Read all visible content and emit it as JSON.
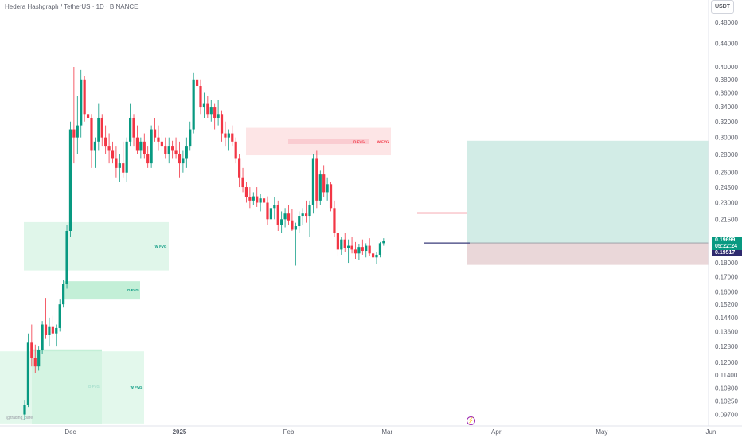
{
  "header": {
    "symbol_title": "Hedera Hashgraph / TetherUS · 1D · BINANCE",
    "currency_button": "USDT"
  },
  "watermark": "@trading_bare",
  "price_tags": {
    "last_price": "0.19699",
    "countdown": "05:22:24",
    "second_price": "0.19517"
  },
  "colors": {
    "up": "#089981",
    "down": "#f23645",
    "fvg_up_fill": "#daf5e6",
    "fvg_up_fill_strong": "#b8ecd0",
    "fvg_down_fill": "#fde0e2",
    "target_zone": "#d2ece6",
    "stop_zone": "#ead7d9",
    "level_line": "#3a3b7a"
  },
  "chart_data": {
    "type": "candlestick",
    "title": "Hedera Hashgraph / TetherUS · 1D · BINANCE",
    "y_axis": {
      "scale": "log",
      "ylim": [
        0.0935,
        0.515
      ],
      "tick_labels": [
        "0.48000",
        "0.44000",
        "0.40000",
        "0.38000",
        "0.36000",
        "0.34000",
        "0.32000",
        "0.30000",
        "0.28000",
        "0.26000",
        "0.24500",
        "0.23000",
        "0.21500",
        "0.18000",
        "0.17000",
        "0.16000",
        "0.15200",
        "0.14400",
        "0.13600",
        "0.12800",
        "0.12000",
        "0.11400",
        "0.10800",
        "0.10250",
        "0.09700"
      ]
    },
    "x_axis": {
      "tick_labels": [
        {
          "label": "Dec",
          "day": 13
        },
        {
          "label": "2025",
          "day": 44
        },
        {
          "label": "Feb",
          "day": 75
        },
        {
          "label": "Mar",
          "day": 103
        },
        {
          "label": "Apr",
          "day": 134
        },
        {
          "label": "May",
          "day": 164
        },
        {
          "label": "Jun",
          "day": 195
        }
      ]
    },
    "candles": [
      [
        0.097,
        0.103,
        0.095,
        0.101
      ],
      [
        0.101,
        0.135,
        0.1,
        0.13
      ],
      [
        0.13,
        0.14,
        0.118,
        0.122
      ],
      [
        0.122,
        0.129,
        0.115,
        0.118
      ],
      [
        0.118,
        0.128,
        0.116,
        0.126
      ],
      [
        0.126,
        0.142,
        0.124,
        0.14
      ],
      [
        0.14,
        0.156,
        0.132,
        0.134
      ],
      [
        0.134,
        0.144,
        0.128,
        0.139
      ],
      [
        0.139,
        0.145,
        0.132,
        0.135
      ],
      [
        0.135,
        0.14,
        0.128,
        0.138
      ],
      [
        0.138,
        0.155,
        0.136,
        0.152
      ],
      [
        0.152,
        0.168,
        0.15,
        0.165
      ],
      [
        0.165,
        0.21,
        0.162,
        0.205
      ],
      [
        0.205,
        0.32,
        0.2,
        0.31
      ],
      [
        0.31,
        0.4,
        0.27,
        0.3
      ],
      [
        0.3,
        0.355,
        0.28,
        0.315
      ],
      [
        0.315,
        0.395,
        0.3,
        0.38
      ],
      [
        0.38,
        0.385,
        0.32,
        0.33
      ],
      [
        0.33,
        0.345,
        0.24,
        0.325
      ],
      [
        0.325,
        0.33,
        0.265,
        0.285
      ],
      [
        0.285,
        0.3,
        0.265,
        0.295
      ],
      [
        0.295,
        0.345,
        0.285,
        0.325
      ],
      [
        0.325,
        0.33,
        0.29,
        0.3
      ],
      [
        0.3,
        0.315,
        0.28,
        0.29
      ],
      [
        0.29,
        0.305,
        0.27,
        0.285
      ],
      [
        0.285,
        0.295,
        0.27,
        0.275
      ],
      [
        0.275,
        0.29,
        0.255,
        0.265
      ],
      [
        0.265,
        0.28,
        0.25,
        0.27
      ],
      [
        0.27,
        0.295,
        0.255,
        0.26
      ],
      [
        0.26,
        0.3,
        0.25,
        0.295
      ],
      [
        0.295,
        0.345,
        0.29,
        0.325
      ],
      [
        0.325,
        0.33,
        0.29,
        0.3
      ],
      [
        0.3,
        0.315,
        0.28,
        0.285
      ],
      [
        0.285,
        0.3,
        0.275,
        0.295
      ],
      [
        0.295,
        0.305,
        0.275,
        0.28
      ],
      [
        0.28,
        0.29,
        0.265,
        0.27
      ],
      [
        0.27,
        0.315,
        0.265,
        0.31
      ],
      [
        0.31,
        0.325,
        0.295,
        0.3
      ],
      [
        0.3,
        0.315,
        0.285,
        0.295
      ],
      [
        0.295,
        0.305,
        0.285,
        0.29
      ],
      [
        0.29,
        0.3,
        0.275,
        0.28
      ],
      [
        0.28,
        0.3,
        0.27,
        0.29
      ],
      [
        0.29,
        0.296,
        0.275,
        0.285
      ],
      [
        0.285,
        0.3,
        0.275,
        0.28
      ],
      [
        0.28,
        0.295,
        0.255,
        0.27
      ],
      [
        0.27,
        0.285,
        0.26,
        0.275
      ],
      [
        0.275,
        0.3,
        0.265,
        0.29
      ],
      [
        0.29,
        0.32,
        0.285,
        0.31
      ],
      [
        0.31,
        0.39,
        0.305,
        0.38
      ],
      [
        0.38,
        0.405,
        0.35,
        0.37
      ],
      [
        0.37,
        0.38,
        0.33,
        0.34
      ],
      [
        0.34,
        0.36,
        0.325,
        0.345
      ],
      [
        0.345,
        0.355,
        0.325,
        0.33
      ],
      [
        0.33,
        0.35,
        0.32,
        0.34
      ],
      [
        0.34,
        0.345,
        0.31,
        0.325
      ],
      [
        0.325,
        0.35,
        0.315,
        0.33
      ],
      [
        0.33,
        0.335,
        0.295,
        0.305
      ],
      [
        0.305,
        0.32,
        0.29,
        0.3
      ],
      [
        0.3,
        0.31,
        0.285,
        0.305
      ],
      [
        0.305,
        0.315,
        0.29,
        0.295
      ],
      [
        0.295,
        0.3,
        0.27,
        0.275
      ],
      [
        0.275,
        0.28,
        0.245,
        0.255
      ],
      [
        0.255,
        0.265,
        0.24,
        0.245
      ],
      [
        0.245,
        0.25,
        0.23,
        0.235
      ],
      [
        0.235,
        0.245,
        0.225,
        0.232
      ],
      [
        0.232,
        0.24,
        0.228,
        0.236
      ],
      [
        0.236,
        0.245,
        0.226,
        0.23
      ],
      [
        0.23,
        0.238,
        0.222,
        0.234
      ],
      [
        0.234,
        0.24,
        0.228,
        0.23
      ],
      [
        0.23,
        0.236,
        0.21,
        0.215
      ],
      [
        0.215,
        0.23,
        0.21,
        0.225
      ],
      [
        0.225,
        0.235,
        0.215,
        0.228
      ],
      [
        0.228,
        0.232,
        0.205,
        0.21
      ],
      [
        0.21,
        0.222,
        0.203,
        0.215
      ],
      [
        0.215,
        0.225,
        0.208,
        0.22
      ],
      [
        0.22,
        0.228,
        0.21,
        0.214
      ],
      [
        0.214,
        0.224,
        0.205,
        0.206
      ],
      [
        0.206,
        0.212,
        0.178,
        0.209
      ],
      [
        0.209,
        0.222,
        0.203,
        0.218
      ],
      [
        0.218,
        0.225,
        0.21,
        0.22
      ],
      [
        0.22,
        0.232,
        0.212,
        0.218
      ],
      [
        0.218,
        0.232,
        0.2,
        0.228
      ],
      [
        0.228,
        0.28,
        0.22,
        0.275
      ],
      [
        0.275,
        0.285,
        0.225,
        0.232
      ],
      [
        0.232,
        0.262,
        0.228,
        0.258
      ],
      [
        0.258,
        0.268,
        0.235,
        0.24
      ],
      [
        0.24,
        0.255,
        0.232,
        0.248
      ],
      [
        0.248,
        0.25,
        0.222,
        0.225
      ],
      [
        0.225,
        0.232,
        0.2,
        0.203
      ],
      [
        0.203,
        0.212,
        0.185,
        0.19
      ],
      [
        0.19,
        0.2,
        0.186,
        0.198
      ],
      [
        0.198,
        0.203,
        0.188,
        0.191
      ],
      [
        0.191,
        0.198,
        0.18,
        0.193
      ],
      [
        0.193,
        0.2,
        0.187,
        0.19
      ],
      [
        0.19,
        0.196,
        0.183,
        0.187
      ],
      [
        0.187,
        0.194,
        0.182,
        0.192
      ],
      [
        0.192,
        0.198,
        0.186,
        0.189
      ],
      [
        0.189,
        0.195,
        0.184,
        0.193
      ],
      [
        0.193,
        0.199,
        0.185,
        0.187
      ],
      [
        0.187,
        0.192,
        0.181,
        0.184
      ],
      [
        0.184,
        0.188,
        0.179,
        0.186
      ],
      [
        0.186,
        0.196,
        0.184,
        0.195
      ],
      [
        0.195,
        0.199,
        0.193,
        0.197
      ]
    ],
    "fvg_zones": [
      {
        "label": "W FVG",
        "direction": "bullish",
        "y_low": 0.1745,
        "y_high": 0.2125
      },
      {
        "label": "D FVG",
        "direction": "bullish",
        "y_low": 0.155,
        "y_high": 0.167
      },
      {
        "label": "D FVG",
        "direction": "bullish",
        "y_low": 0.0935,
        "y_high": 0.1265
      },
      {
        "label": "W FVG",
        "direction": "bullish",
        "y_low": 0.0935,
        "y_high": 0.1255
      },
      {
        "label": "W FVG",
        "direction": "bearish",
        "y_low": 0.279,
        "y_high": 0.312
      },
      {
        "label": "D FVG",
        "direction": "bearish",
        "y_low": 0.292,
        "y_high": 0.298
      },
      {
        "label": "D FVG",
        "direction": "bearish",
        "y_low": 0.2195,
        "y_high": 0.2215
      }
    ],
    "position_tool": {
      "entry": 0.1952,
      "target": 0.296,
      "stop": 0.1785
    },
    "horizontal_line": 0.19517
  }
}
